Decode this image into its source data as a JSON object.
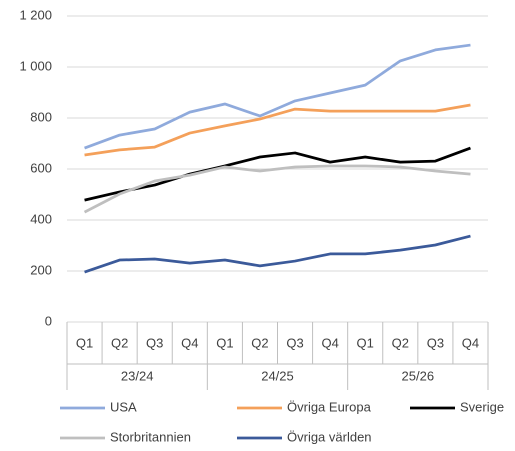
{
  "chart_data": {
    "type": "line",
    "categories": [
      "Q1",
      "Q2",
      "Q3",
      "Q4",
      "Q1",
      "Q2",
      "Q3",
      "Q4",
      "Q1",
      "Q2",
      "Q3",
      "Q4"
    ],
    "groups": [
      "23/24",
      "24/25",
      "25/26"
    ],
    "series": [
      {
        "name": "USA",
        "color": "#8faadc",
        "values": [
          682,
          733,
          757,
          823,
          855,
          808,
          867,
          898,
          929,
          1024,
          1067,
          1086
        ]
      },
      {
        "name": "Övriga Europa",
        "color": "#f4a05a",
        "values": [
          655,
          675,
          686,
          741,
          769,
          796,
          835,
          827,
          827,
          827,
          827,
          851
        ]
      },
      {
        "name": "Sverige",
        "color": "#000000",
        "values": [
          478,
          510,
          537,
          580,
          612,
          647,
          663,
          627,
          647,
          627,
          631,
          682
        ]
      },
      {
        "name": "Storbritannien",
        "color": "#bfbfbf",
        "values": [
          431,
          502,
          553,
          576,
          608,
          592,
          608,
          612,
          612,
          608,
          592,
          580
        ]
      },
      {
        "name": "Övriga världen",
        "color": "#3b5a9a",
        "values": [
          196,
          243,
          247,
          231,
          243,
          220,
          239,
          267,
          267,
          282,
          302,
          337
        ]
      }
    ],
    "ylim": [
      0,
      1200
    ],
    "yticks": [
      0,
      200,
      400,
      600,
      800,
      {
        "value": 1000,
        "label": "1 000"
      },
      {
        "value": 1200,
        "label": "1 200"
      }
    ],
    "grid": true
  }
}
